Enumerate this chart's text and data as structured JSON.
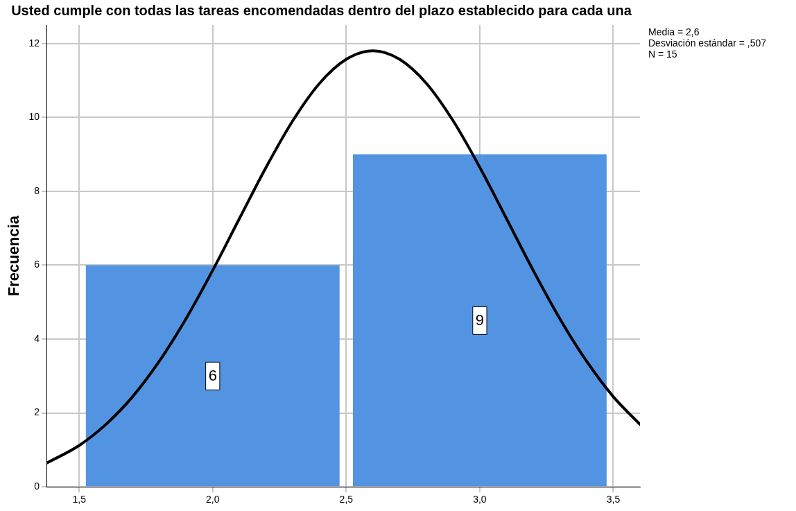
{
  "chart_data": {
    "type": "histogram",
    "title": "Usted cumple con todas las tareas encomendadas dentro del plazo establecido para cada una",
    "ylabel": "Frecuencia",
    "bins": [
      1.5,
      2.5,
      3.5
    ],
    "values": [
      6,
      9
    ],
    "color": "#5294e2",
    "value_labels": [
      "6",
      "9"
    ],
    "series": [
      {
        "type": "line",
        "color": "#000000",
        "marker": "none",
        "x": [
          1.38,
          1.5,
          1.6,
          1.7,
          1.8,
          1.9,
          2.0,
          2.1,
          2.2,
          2.3,
          2.4,
          2.5,
          2.6,
          2.7,
          2.8,
          2.9,
          3.0,
          3.1,
          3.2,
          3.3,
          3.4,
          3.5,
          3.6
        ],
        "values": [
          0.65,
          1.12,
          1.69,
          2.44,
          3.4,
          4.55,
          5.86,
          7.26,
          8.65,
          9.91,
          10.92,
          11.57,
          11.8,
          11.57,
          10.92,
          9.91,
          8.65,
          7.26,
          5.86,
          4.55,
          3.4,
          2.44,
          1.69
        ]
      }
    ],
    "xlim": [
      1.38,
      3.6
    ],
    "xticks": [
      {
        "value": 1.5,
        "label": "1,5"
      },
      {
        "value": 2.0,
        "label": "2,0"
      },
      {
        "value": 2.5,
        "label": "2,5"
      },
      {
        "value": 3.0,
        "label": "3,0"
      },
      {
        "value": 3.5,
        "label": "3,5"
      }
    ],
    "ylim": [
      0,
      12.5
    ],
    "yticks": [
      0,
      2,
      4,
      6,
      8,
      10,
      12
    ],
    "grid": true,
    "legend": false,
    "annotations": [
      "Media = 2,6",
      "Desviación estándar = ,507",
      "N = 15"
    ]
  }
}
